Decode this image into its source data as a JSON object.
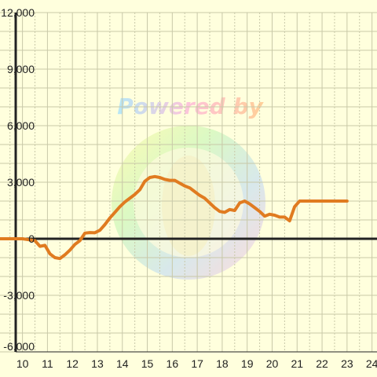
{
  "chart_data": {
    "type": "line",
    "title": "",
    "xlabel": "",
    "ylabel": "",
    "xlim": [
      9.1,
      24.2
    ],
    "ylim": [
      -6000,
      12000
    ],
    "x_ticks": [
      10,
      11,
      12,
      13,
      14,
      15,
      16,
      17,
      18,
      19,
      20,
      21,
      22,
      23,
      24
    ],
    "y_ticks": [
      12000,
      9000,
      6000,
      3000,
      0,
      -3000,
      -6000
    ],
    "y_tick_labels": [
      "12,000",
      "9,000",
      "6,000",
      "3,000",
      "0",
      "-3,000",
      "-6,000"
    ],
    "grid": true,
    "series": [
      {
        "x": [
          9.1,
          9.5,
          10.0,
          10.25,
          10.5,
          10.7,
          10.9,
          11.1,
          11.3,
          11.5,
          11.7,
          11.9,
          12.1,
          12.3,
          12.5,
          12.7,
          12.9,
          13.1,
          13.3,
          13.5,
          13.7,
          13.9,
          14.1,
          14.3,
          14.5,
          14.7,
          14.9,
          15.1,
          15.3,
          15.5,
          15.7,
          15.9,
          16.1,
          16.3,
          16.5,
          16.7,
          16.9,
          17.1,
          17.3,
          17.5,
          17.7,
          17.9,
          18.1,
          18.3,
          18.5,
          18.7,
          18.9,
          19.1,
          19.3,
          19.5,
          19.7,
          19.9,
          20.1,
          20.3,
          20.5,
          20.7,
          20.9,
          21.1,
          21.3,
          21.5,
          21.7,
          21.9,
          22.1,
          22.3,
          22.5,
          22.7,
          22.9,
          23.0
        ],
        "values": [
          0,
          0,
          0,
          -50,
          -100,
          -400,
          -350,
          -800,
          -1000,
          -1050,
          -850,
          -600,
          -300,
          -100,
          300,
          330,
          320,
          450,
          750,
          1100,
          1400,
          1700,
          1950,
          2150,
          2350,
          2600,
          3050,
          3250,
          3300,
          3250,
          3150,
          3100,
          3100,
          2950,
          2800,
          2700,
          2500,
          2300,
          2150,
          1900,
          1650,
          1450,
          1400,
          1550,
          1500,
          1900,
          2000,
          1850,
          1650,
          1450,
          1200,
          1300,
          1250,
          1150,
          1150,
          950,
          1700,
          2000,
          2000,
          2000,
          2000,
          2000,
          2000,
          2000,
          2000,
          2000,
          2000,
          2000
        ],
        "color": "#e07b20"
      }
    ],
    "watermark_text": "Powered by",
    "colors": {
      "background": "#ffffdd",
      "grid": "#c8c8a8",
      "axis": "#222222",
      "line": "#e07b20"
    }
  }
}
